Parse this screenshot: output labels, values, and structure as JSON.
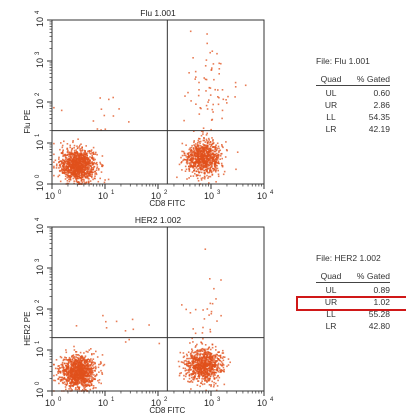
{
  "chart_data": [
    {
      "type": "scatter",
      "title": "Flu 1.001",
      "xlabel": "CD8 FITC",
      "ylabel": "Flu PE",
      "xscale": "log",
      "yscale": "log",
      "xlim": [
        1,
        10000
      ],
      "ylim": [
        1,
        10000
      ],
      "x_ticks": [
        "10",
        "10",
        "10",
        "10",
        "10"
      ],
      "x_tick_exponents": [
        "0",
        "1",
        "2",
        "3",
        "4"
      ],
      "y_ticks": [
        "10",
        "10",
        "10",
        "10",
        "10"
      ],
      "y_tick_exponents": [
        "0",
        "1",
        "2",
        "3",
        "4"
      ],
      "gate_x": 150,
      "gate_y": 20,
      "point_color": "#e0501c",
      "populations": [
        {
          "quadrant": "LL",
          "x_center": 3.0,
          "y_center": 3.0,
          "approx_points": 1100
        },
        {
          "quadrant": "LR",
          "x_center": 700,
          "y_center": 4.5,
          "approx_points": 850
        },
        {
          "quadrant": "UR",
          "x_center": 900,
          "y_center": 250,
          "approx_points": 70
        },
        {
          "quadrant": "UL",
          "x_center": 10,
          "y_center": 60,
          "approx_points": 15
        }
      ]
    },
    {
      "type": "scatter",
      "title": "HER2 1.002",
      "xlabel": "CD8 FITC",
      "ylabel": "HER2 PE",
      "xscale": "log",
      "yscale": "log",
      "xlim": [
        1,
        10000
      ],
      "ylim": [
        1,
        10000
      ],
      "x_ticks": [
        "10",
        "10",
        "10",
        "10",
        "10"
      ],
      "x_tick_exponents": [
        "0",
        "1",
        "2",
        "3",
        "4"
      ],
      "y_ticks": [
        "10",
        "10",
        "10",
        "10",
        "10"
      ],
      "y_tick_exponents": [
        "0",
        "1",
        "2",
        "3",
        "4"
      ],
      "gate_x": 150,
      "gate_y": 20,
      "point_color": "#e0501c",
      "populations": [
        {
          "quadrant": "LL",
          "x_center": 3.0,
          "y_center": 3.0,
          "approx_points": 1100
        },
        {
          "quadrant": "LR",
          "x_center": 700,
          "y_center": 4.5,
          "approx_points": 850
        },
        {
          "quadrant": "UR",
          "x_center": 800,
          "y_center": 80,
          "approx_points": 30
        },
        {
          "quadrant": "UL",
          "x_center": 10,
          "y_center": 40,
          "approx_points": 12
        }
      ]
    }
  ],
  "stats": [
    {
      "file_label": "File: Flu 1.001",
      "header_quad": "Quad",
      "header_gated": "% Gated",
      "rows": [
        {
          "quad": "UL",
          "gated": "0.60"
        },
        {
          "quad": "UR",
          "gated": "2.86"
        },
        {
          "quad": "LL",
          "gated": "54.35"
        },
        {
          "quad": "LR",
          "gated": "42.19"
        }
      ],
      "highlight_row": null
    },
    {
      "file_label": "File: HER2 1.002",
      "header_quad": "Quad",
      "header_gated": "% Gated",
      "rows": [
        {
          "quad": "UL",
          "gated": "0.89"
        },
        {
          "quad": "UR",
          "gated": "1.02"
        },
        {
          "quad": "LL",
          "gated": "55.28"
        },
        {
          "quad": "LR",
          "gated": "42.80"
        }
      ],
      "highlight_row": 1,
      "highlight_color": "#d01818"
    }
  ]
}
